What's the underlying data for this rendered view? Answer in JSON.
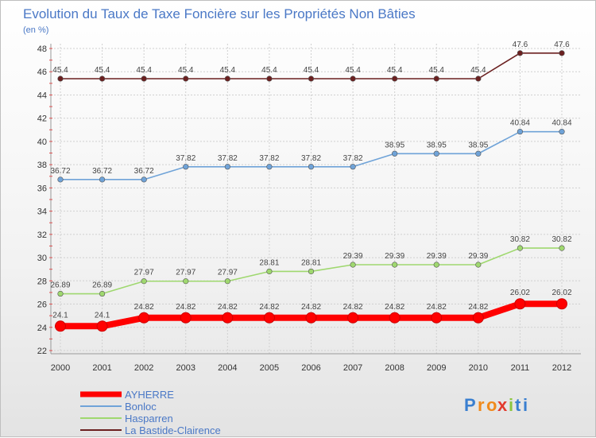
{
  "chart_data": {
    "type": "line",
    "title": "Evolution du Taux de Taxe Foncière sur les Propriétés Non Bâties",
    "ylabel": "(en %)",
    "xlabel": "",
    "categories": [
      "2000",
      "2001",
      "2002",
      "2003",
      "2004",
      "2005",
      "2006",
      "2007",
      "2008",
      "2009",
      "2010",
      "2011",
      "2012"
    ],
    "ylim": [
      22,
      48
    ],
    "yticks": [
      22,
      24,
      26,
      28,
      30,
      32,
      34,
      36,
      38,
      40,
      42,
      44,
      46,
      48
    ],
    "grid": true,
    "legend_position": "bottom-left",
    "series": [
      {
        "name": "AYHERRE",
        "color": "#ff0000",
        "emphasis": true,
        "values": [
          24.1,
          24.1,
          24.82,
          24.82,
          24.82,
          24.82,
          24.82,
          24.82,
          24.82,
          24.82,
          24.82,
          26.02,
          26.02
        ],
        "labels": [
          "24.1",
          "24.1",
          "24.82",
          "24.82",
          "24.82",
          "24.82",
          "24.82",
          "24.82",
          "24.82",
          "24.82",
          "24.82",
          "26.02",
          "26.02"
        ]
      },
      {
        "name": "Bonloc",
        "color": "#6fa3d8",
        "emphasis": false,
        "values": [
          36.72,
          36.72,
          36.72,
          37.82,
          37.82,
          37.82,
          37.82,
          37.82,
          38.95,
          38.95,
          38.95,
          40.84,
          40.84
        ],
        "labels": [
          "36.72",
          "36.72",
          "36.72",
          "37.82",
          "37.82",
          "37.82",
          "37.82",
          "37.82",
          "38.95",
          "38.95",
          "38.95",
          "40.84",
          "40.84"
        ]
      },
      {
        "name": "Hasparren",
        "color": "#9fd86f",
        "emphasis": false,
        "values": [
          26.89,
          26.89,
          27.97,
          27.97,
          27.97,
          28.81,
          28.81,
          29.39,
          29.39,
          29.39,
          29.39,
          30.82,
          30.82
        ],
        "labels": [
          "26.89",
          "26.89",
          "27.97",
          "27.97",
          "27.97",
          "28.81",
          "28.81",
          "29.39",
          "29.39",
          "29.39",
          "29.39",
          "30.82",
          "30.82"
        ]
      },
      {
        "name": "La Bastide-Clairence",
        "color": "#6b2020",
        "emphasis": false,
        "values": [
          45.4,
          45.4,
          45.4,
          45.4,
          45.4,
          45.4,
          45.4,
          45.4,
          45.4,
          45.4,
          45.4,
          47.6,
          47.6
        ],
        "labels": [
          "45.4",
          "45.4",
          "45.4",
          "45.4",
          "45.4",
          "45.4",
          "45.4",
          "45.4",
          "45.4",
          "45.4",
          "45.4",
          "47.6",
          "47.6"
        ]
      }
    ]
  },
  "logo": {
    "letters": [
      "P",
      "r",
      "o",
      "x",
      "i",
      "t",
      "i"
    ],
    "colors": [
      "#3a7fd0",
      "#f08a1c",
      "#f08a1c",
      "#e23a2e",
      "#8cc63f",
      "#3a7fd0",
      "#3a7fd0"
    ]
  }
}
